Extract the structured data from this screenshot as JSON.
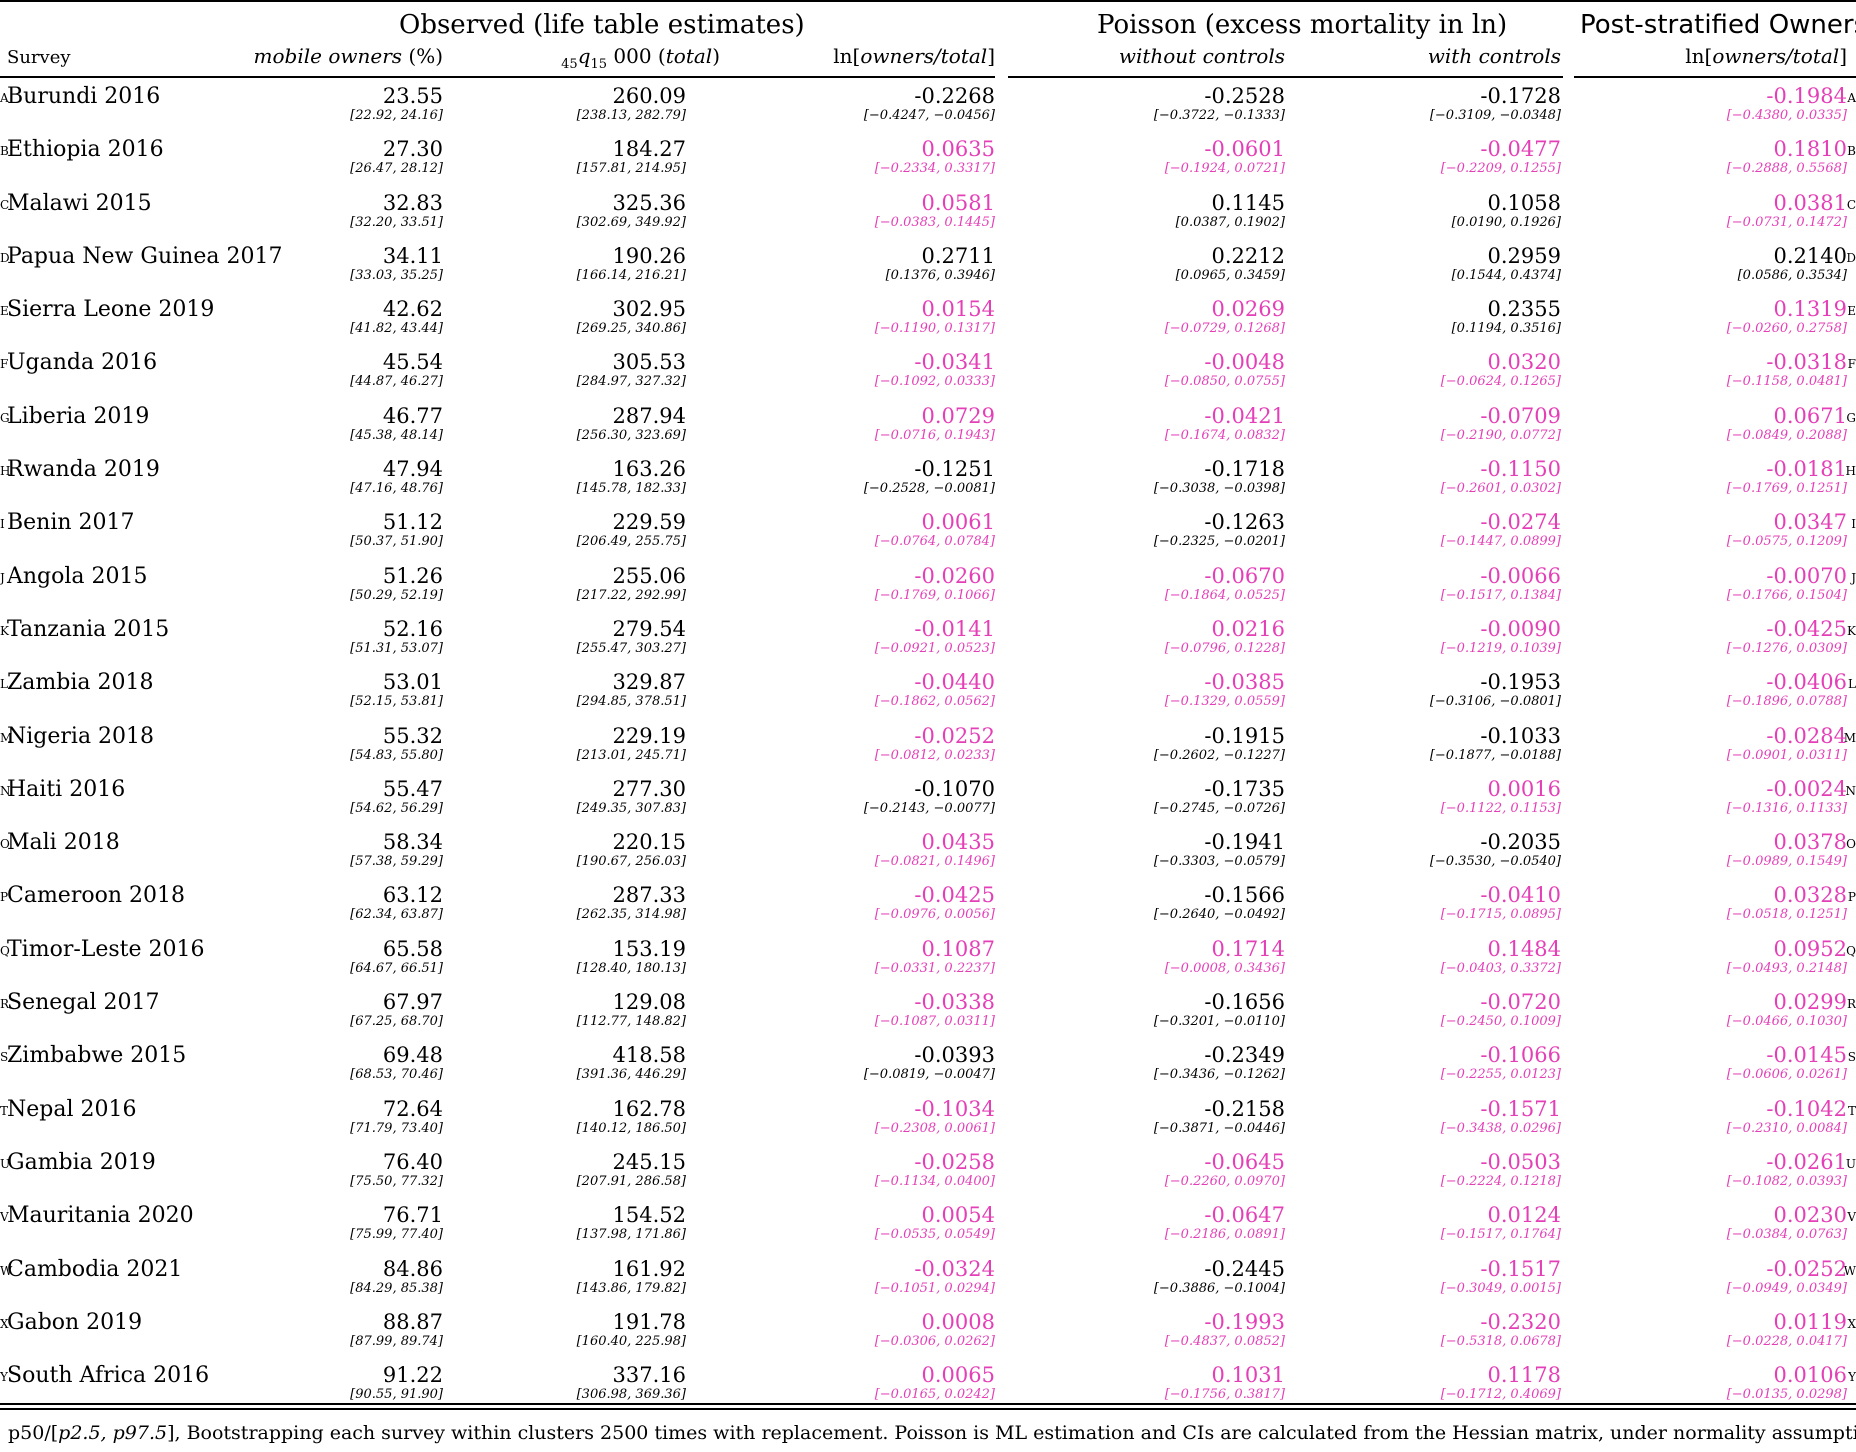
{
  "groups": {
    "observed": "Observed (life table estimates)",
    "poisson": "Poisson (excess mortality in ln)",
    "post": "Post-stratified Owners"
  },
  "columns": {
    "survey": "Survey",
    "owners": "mobile owners",
    "owners_unit": " (%)",
    "q_pre": "45",
    "q_mid": "q",
    "q_sub": "15",
    "q_num": " 000 (",
    "q_total": "total",
    "q_close": ")",
    "ln_pre": "ln[",
    "ln_mid": "owners/total",
    "ln_close": "]",
    "without": "without controls",
    "with": "with controls",
    "ln2_pre": "ln[",
    "ln2_mid": "owners/total",
    "ln2_close": "]"
  },
  "colors": {
    "significant": "#000000",
    "not_significant": "#e43fb7"
  },
  "rows": [
    {
      "label": "A",
      "survey": "Burundi 2016",
      "owners": "23.55",
      "owners_ci": "[22.92, 24.16]",
      "q": "260.09",
      "q_ci": "[238.13, 282.79]",
      "ln": "-0.2268",
      "ln_ci": "[−0.4247, −0.0456]",
      "ln_sig": true,
      "wo": "-0.2528",
      "wo_ci": "[−0.3722, −0.1333]",
      "wo_sig": true,
      "wi": "-0.1728",
      "wi_ci": "[−0.3109, −0.0348]",
      "wi_sig": true,
      "ps": "-0.1984",
      "ps_ci": "[−0.4380, 0.0335]",
      "ps_sig": false
    },
    {
      "label": "B",
      "survey": "Ethiopia 2016",
      "owners": "27.30",
      "owners_ci": "[26.47, 28.12]",
      "q": "184.27",
      "q_ci": "[157.81, 214.95]",
      "ln": "0.0635",
      "ln_ci": "[−0.2334, 0.3317]",
      "ln_sig": false,
      "wo": "-0.0601",
      "wo_ci": "[−0.1924, 0.0721]",
      "wo_sig": false,
      "wi": "-0.0477",
      "wi_ci": "[−0.2209, 0.1255]",
      "wi_sig": false,
      "ps": "0.1810",
      "ps_ci": "[−0.2888, 0.5568]",
      "ps_sig": false
    },
    {
      "label": "C",
      "survey": "Malawi 2015",
      "owners": "32.83",
      "owners_ci": "[32.20, 33.51]",
      "q": "325.36",
      "q_ci": "[302.69, 349.92]",
      "ln": "0.0581",
      "ln_ci": "[−0.0383, 0.1445]",
      "ln_sig": false,
      "wo": "0.1145",
      "wo_ci": "[0.0387, 0.1902]",
      "wo_sig": true,
      "wi": "0.1058",
      "wi_ci": "[0.0190, 0.1926]",
      "wi_sig": true,
      "ps": "0.0381",
      "ps_ci": "[−0.0731, 0.1472]",
      "ps_sig": false
    },
    {
      "label": "D",
      "survey": "Papua New Guinea 2017",
      "owners": "34.11",
      "owners_ci": "[33.03, 35.25]",
      "q": "190.26",
      "q_ci": "[166.14, 216.21]",
      "ln": "0.2711",
      "ln_ci": "[0.1376, 0.3946]",
      "ln_sig": true,
      "wo": "0.2212",
      "wo_ci": "[0.0965, 0.3459]",
      "wo_sig": true,
      "wi": "0.2959",
      "wi_ci": "[0.1544, 0.4374]",
      "wi_sig": true,
      "ps": "0.2140",
      "ps_ci": "[0.0586, 0.3534]",
      "ps_sig": true
    },
    {
      "label": "E",
      "survey": "Sierra Leone 2019",
      "owners": "42.62",
      "owners_ci": "[41.82, 43.44]",
      "q": "302.95",
      "q_ci": "[269.25, 340.86]",
      "ln": "0.0154",
      "ln_ci": "[−0.1190, 0.1317]",
      "ln_sig": false,
      "wo": "0.0269",
      "wo_ci": "[−0.0729, 0.1268]",
      "wo_sig": false,
      "wi": "0.2355",
      "wi_ci": "[0.1194, 0.3516]",
      "wi_sig": true,
      "ps": "0.1319",
      "ps_ci": "[−0.0260, 0.2758]",
      "ps_sig": false
    },
    {
      "label": "F",
      "survey": "Uganda 2016",
      "owners": "45.54",
      "owners_ci": "[44.87, 46.27]",
      "q": "305.53",
      "q_ci": "[284.97, 327.32]",
      "ln": "-0.0341",
      "ln_ci": "[−0.1092, 0.0333]",
      "ln_sig": false,
      "wo": "-0.0048",
      "wo_ci": "[−0.0850, 0.0755]",
      "wo_sig": false,
      "wi": "0.0320",
      "wi_ci": "[−0.0624, 0.1265]",
      "wi_sig": false,
      "ps": "-0.0318",
      "ps_ci": "[−0.1158, 0.0481]",
      "ps_sig": false
    },
    {
      "label": "G",
      "survey": "Liberia 2019",
      "owners": "46.77",
      "owners_ci": "[45.38, 48.14]",
      "q": "287.94",
      "q_ci": "[256.30, 323.69]",
      "ln": "0.0729",
      "ln_ci": "[−0.0716, 0.1943]",
      "ln_sig": false,
      "wo": "-0.0421",
      "wo_ci": "[−0.1674, 0.0832]",
      "wo_sig": false,
      "wi": "-0.0709",
      "wi_ci": "[−0.2190, 0.0772]",
      "wi_sig": false,
      "ps": "0.0671",
      "ps_ci": "[−0.0849, 0.2088]",
      "ps_sig": false
    },
    {
      "label": "H",
      "survey": "Rwanda 2019",
      "owners": "47.94",
      "owners_ci": "[47.16, 48.76]",
      "q": "163.26",
      "q_ci": "[145.78, 182.33]",
      "ln": "-0.1251",
      "ln_ci": "[−0.2528, −0.0081]",
      "ln_sig": true,
      "wo": "-0.1718",
      "wo_ci": "[−0.3038, −0.0398]",
      "wo_sig": true,
      "wi": "-0.1150",
      "wi_ci": "[−0.2601, 0.0302]",
      "wi_sig": false,
      "ps": "-0.0181",
      "ps_ci": "[−0.1769, 0.1251]",
      "ps_sig": false
    },
    {
      "label": "I",
      "survey": "Benin 2017",
      "owners": "51.12",
      "owners_ci": "[50.37, 51.90]",
      "q": "229.59",
      "q_ci": "[206.49, 255.75]",
      "ln": "0.0061",
      "ln_ci": "[−0.0764, 0.0784]",
      "ln_sig": false,
      "wo": "-0.1263",
      "wo_ci": "[−0.2325, −0.0201]",
      "wo_sig": true,
      "wi": "-0.0274",
      "wi_ci": "[−0.1447, 0.0899]",
      "wi_sig": false,
      "ps": "0.0347",
      "ps_ci": "[−0.0575, 0.1209]",
      "ps_sig": false
    },
    {
      "label": "J",
      "survey": "Angola 2015",
      "owners": "51.26",
      "owners_ci": "[50.29, 52.19]",
      "q": "255.06",
      "q_ci": "[217.22, 292.99]",
      "ln": "-0.0260",
      "ln_ci": "[−0.1769, 0.1066]",
      "ln_sig": false,
      "wo": "-0.0670",
      "wo_ci": "[−0.1864, 0.0525]",
      "wo_sig": false,
      "wi": "-0.0066",
      "wi_ci": "[−0.1517, 0.1384]",
      "wi_sig": false,
      "ps": "-0.0070",
      "ps_ci": "[−0.1766, 0.1504]",
      "ps_sig": false
    },
    {
      "label": "K",
      "survey": "Tanzania 2015",
      "owners": "52.16",
      "owners_ci": "[51.31, 53.07]",
      "q": "279.54",
      "q_ci": "[255.47, 303.27]",
      "ln": "-0.0141",
      "ln_ci": "[−0.0921, 0.0523]",
      "ln_sig": false,
      "wo": "0.0216",
      "wo_ci": "[−0.0796, 0.1228]",
      "wo_sig": false,
      "wi": "-0.0090",
      "wi_ci": "[−0.1219, 0.1039]",
      "wi_sig": false,
      "ps": "-0.0425",
      "ps_ci": "[−0.1276, 0.0309]",
      "ps_sig": false
    },
    {
      "label": "L",
      "survey": "Zambia 2018",
      "owners": "53.01",
      "owners_ci": "[52.15, 53.81]",
      "q": "329.87",
      "q_ci": "[294.85, 378.51]",
      "ln": "-0.0440",
      "ln_ci": "[−0.1862, 0.0562]",
      "ln_sig": false,
      "wo": "-0.0385",
      "wo_ci": "[−0.1329, 0.0559]",
      "wo_sig": false,
      "wi": "-0.1953",
      "wi_ci": "[−0.3106, −0.0801]",
      "wi_sig": true,
      "ps": "-0.0406",
      "ps_ci": "[−0.1896, 0.0788]",
      "ps_sig": false
    },
    {
      "label": "M",
      "survey": "Nigeria 2018",
      "owners": "55.32",
      "owners_ci": "[54.83, 55.80]",
      "q": "229.19",
      "q_ci": "[213.01, 245.71]",
      "ln": "-0.0252",
      "ln_ci": "[−0.0812, 0.0233]",
      "ln_sig": false,
      "wo": "-0.1915",
      "wo_ci": "[−0.2602, −0.1227]",
      "wo_sig": true,
      "wi": "-0.1033",
      "wi_ci": "[−0.1877, −0.0188]",
      "wi_sig": true,
      "ps": "-0.0284",
      "ps_ci": "[−0.0901, 0.0311]",
      "ps_sig": false
    },
    {
      "label": "N",
      "survey": "Haiti 2016",
      "owners": "55.47",
      "owners_ci": "[54.62, 56.29]",
      "q": "277.30",
      "q_ci": "[249.35, 307.83]",
      "ln": "-0.1070",
      "ln_ci": "[−0.2143, −0.0077]",
      "ln_sig": true,
      "wo": "-0.1735",
      "wo_ci": "[−0.2745, −0.0726]",
      "wo_sig": true,
      "wi": "0.0016",
      "wi_ci": "[−0.1122, 0.1153]",
      "wi_sig": false,
      "ps": "-0.0024",
      "ps_ci": "[−0.1316, 0.1133]",
      "ps_sig": false
    },
    {
      "label": "O",
      "survey": "Mali 2018",
      "owners": "58.34",
      "owners_ci": "[57.38, 59.29]",
      "q": "220.15",
      "q_ci": "[190.67, 256.03]",
      "ln": "0.0435",
      "ln_ci": "[−0.0821, 0.1496]",
      "ln_sig": false,
      "wo": "-0.1941",
      "wo_ci": "[−0.3303, −0.0579]",
      "wo_sig": true,
      "wi": "-0.2035",
      "wi_ci": "[−0.3530, −0.0540]",
      "wi_sig": true,
      "ps": "0.0378",
      "ps_ci": "[−0.0989, 0.1549]",
      "ps_sig": false
    },
    {
      "label": "P",
      "survey": "Cameroon 2018",
      "owners": "63.12",
      "owners_ci": "[62.34, 63.87]",
      "q": "287.33",
      "q_ci": "[262.35, 314.98]",
      "ln": "-0.0425",
      "ln_ci": "[−0.0976, 0.0056]",
      "ln_sig": false,
      "wo": "-0.1566",
      "wo_ci": "[−0.2640, −0.0492]",
      "wo_sig": true,
      "wi": "-0.0410",
      "wi_ci": "[−0.1715, 0.0895]",
      "wi_sig": false,
      "ps": "0.0328",
      "ps_ci": "[−0.0518, 0.1251]",
      "ps_sig": false
    },
    {
      "label": "Q",
      "survey": "Timor-Leste 2016",
      "owners": "65.58",
      "owners_ci": "[64.67, 66.51]",
      "q": "153.19",
      "q_ci": "[128.40, 180.13]",
      "ln": "0.1087",
      "ln_ci": "[−0.0331, 0.2237]",
      "ln_sig": false,
      "wo": "0.1714",
      "wo_ci": "[−0.0008, 0.3436]",
      "wo_sig": false,
      "wi": "0.1484",
      "wi_ci": "[−0.0403, 0.3372]",
      "wi_sig": false,
      "ps": "0.0952",
      "ps_ci": "[−0.0493, 0.2148]",
      "ps_sig": false
    },
    {
      "label": "R",
      "survey": "Senegal 2017",
      "owners": "67.97",
      "owners_ci": "[67.25, 68.70]",
      "q": "129.08",
      "q_ci": "[112.77, 148.82]",
      "ln": "-0.0338",
      "ln_ci": "[−0.1087, 0.0311]",
      "ln_sig": false,
      "wo": "-0.1656",
      "wo_ci": "[−0.3201, −0.0110]",
      "wo_sig": true,
      "wi": "-0.0720",
      "wi_ci": "[−0.2450, 0.1009]",
      "wi_sig": false,
      "ps": "0.0299",
      "ps_ci": "[−0.0466, 0.1030]",
      "ps_sig": false
    },
    {
      "label": "S",
      "survey": "Zimbabwe 2015",
      "owners": "69.48",
      "owners_ci": "[68.53, 70.46]",
      "q": "418.58",
      "q_ci": "[391.36, 446.29]",
      "ln": "-0.0393",
      "ln_ci": "[−0.0819, −0.0047]",
      "ln_sig": true,
      "wo": "-0.2349",
      "wo_ci": "[−0.3436, −0.1262]",
      "wo_sig": true,
      "wi": "-0.1066",
      "wi_ci": "[−0.2255, 0.0123]",
      "wi_sig": false,
      "ps": "-0.0145",
      "ps_ci": "[−0.0606, 0.0261]",
      "ps_sig": false
    },
    {
      "label": "T",
      "survey": "Nepal 2016",
      "owners": "72.64",
      "owners_ci": "[71.79, 73.40]",
      "q": "162.78",
      "q_ci": "[140.12, 186.50]",
      "ln": "-0.1034",
      "ln_ci": "[−0.2308, 0.0061]",
      "ln_sig": false,
      "wo": "-0.2158",
      "wo_ci": "[−0.3871, −0.0446]",
      "wo_sig": true,
      "wi": "-0.1571",
      "wi_ci": "[−0.3438, 0.0296]",
      "wi_sig": false,
      "ps": "-0.1042",
      "ps_ci": "[−0.2310, 0.0084]",
      "ps_sig": false
    },
    {
      "label": "U",
      "survey": "Gambia 2019",
      "owners": "76.40",
      "owners_ci": "[75.50, 77.32]",
      "q": "245.15",
      "q_ci": "[207.91, 286.58]",
      "ln": "-0.0258",
      "ln_ci": "[−0.1134, 0.0400]",
      "ln_sig": false,
      "wo": "-0.0645",
      "wo_ci": "[−0.2260, 0.0970]",
      "wo_sig": false,
      "wi": "-0.0503",
      "wi_ci": "[−0.2224, 0.1218]",
      "wi_sig": false,
      "ps": "-0.0261",
      "ps_ci": "[−0.1082, 0.0393]",
      "ps_sig": false
    },
    {
      "label": "V",
      "survey": "Mauritania 2020",
      "owners": "76.71",
      "owners_ci": "[75.99, 77.40]",
      "q": "154.52",
      "q_ci": "[137.98, 171.86]",
      "ln": "0.0054",
      "ln_ci": "[−0.0535, 0.0549]",
      "ln_sig": false,
      "wo": "-0.0647",
      "wo_ci": "[−0.2186, 0.0891]",
      "wo_sig": false,
      "wi": "0.0124",
      "wi_ci": "[−0.1517, 0.1764]",
      "wi_sig": false,
      "ps": "0.0230",
      "ps_ci": "[−0.0384, 0.0763]",
      "ps_sig": false
    },
    {
      "label": "W",
      "survey": "Cambodia 2021",
      "owners": "84.86",
      "owners_ci": "[84.29, 85.38]",
      "q": "161.92",
      "q_ci": "[143.86, 179.82]",
      "ln": "-0.0324",
      "ln_ci": "[−0.1051, 0.0294]",
      "ln_sig": false,
      "wo": "-0.2445",
      "wo_ci": "[−0.3886, −0.1004]",
      "wo_sig": true,
      "wi": "-0.1517",
      "wi_ci": "[−0.3049, 0.0015]",
      "wi_sig": false,
      "ps": "-0.0252",
      "ps_ci": "[−0.0949, 0.0349]",
      "ps_sig": false
    },
    {
      "label": "X",
      "survey": "Gabon 2019",
      "owners": "88.87",
      "owners_ci": "[87.99, 89.74]",
      "q": "191.78",
      "q_ci": "[160.40, 225.98]",
      "ln": "0.0008",
      "ln_ci": "[−0.0306, 0.0262]",
      "ln_sig": false,
      "wo": "-0.1993",
      "wo_ci": "[−0.4837, 0.0852]",
      "wo_sig": false,
      "wi": "-0.2320",
      "wi_ci": "[−0.5318, 0.0678]",
      "wi_sig": false,
      "ps": "0.0119",
      "ps_ci": "[−0.0228, 0.0417]",
      "ps_sig": false
    },
    {
      "label": "Y",
      "survey": "South Africa 2016",
      "owners": "91.22",
      "owners_ci": "[90.55, 91.90]",
      "q": "337.16",
      "q_ci": "[306.98, 369.36]",
      "ln": "0.0065",
      "ln_ci": "[−0.0165, 0.0242]",
      "ln_sig": false,
      "wo": "0.1031",
      "wo_ci": "[−0.1756, 0.3817]",
      "wo_sig": false,
      "wi": "0.1178",
      "wi_ci": "[−0.1712, 0.4069]",
      "wi_sig": false,
      "ps": "0.0106",
      "ps_ci": "[−0.0135, 0.0298]",
      "ps_sig": false
    }
  ],
  "footnote": {
    "a": "p50/[",
    "b": "p2.5, p97.5",
    "c": "], Bootstrapping each survey within clusters 2500 times with replacement. Poisson is ML estimation and CIs are calculated from the Hessian matrix, under normality assumptions."
  }
}
